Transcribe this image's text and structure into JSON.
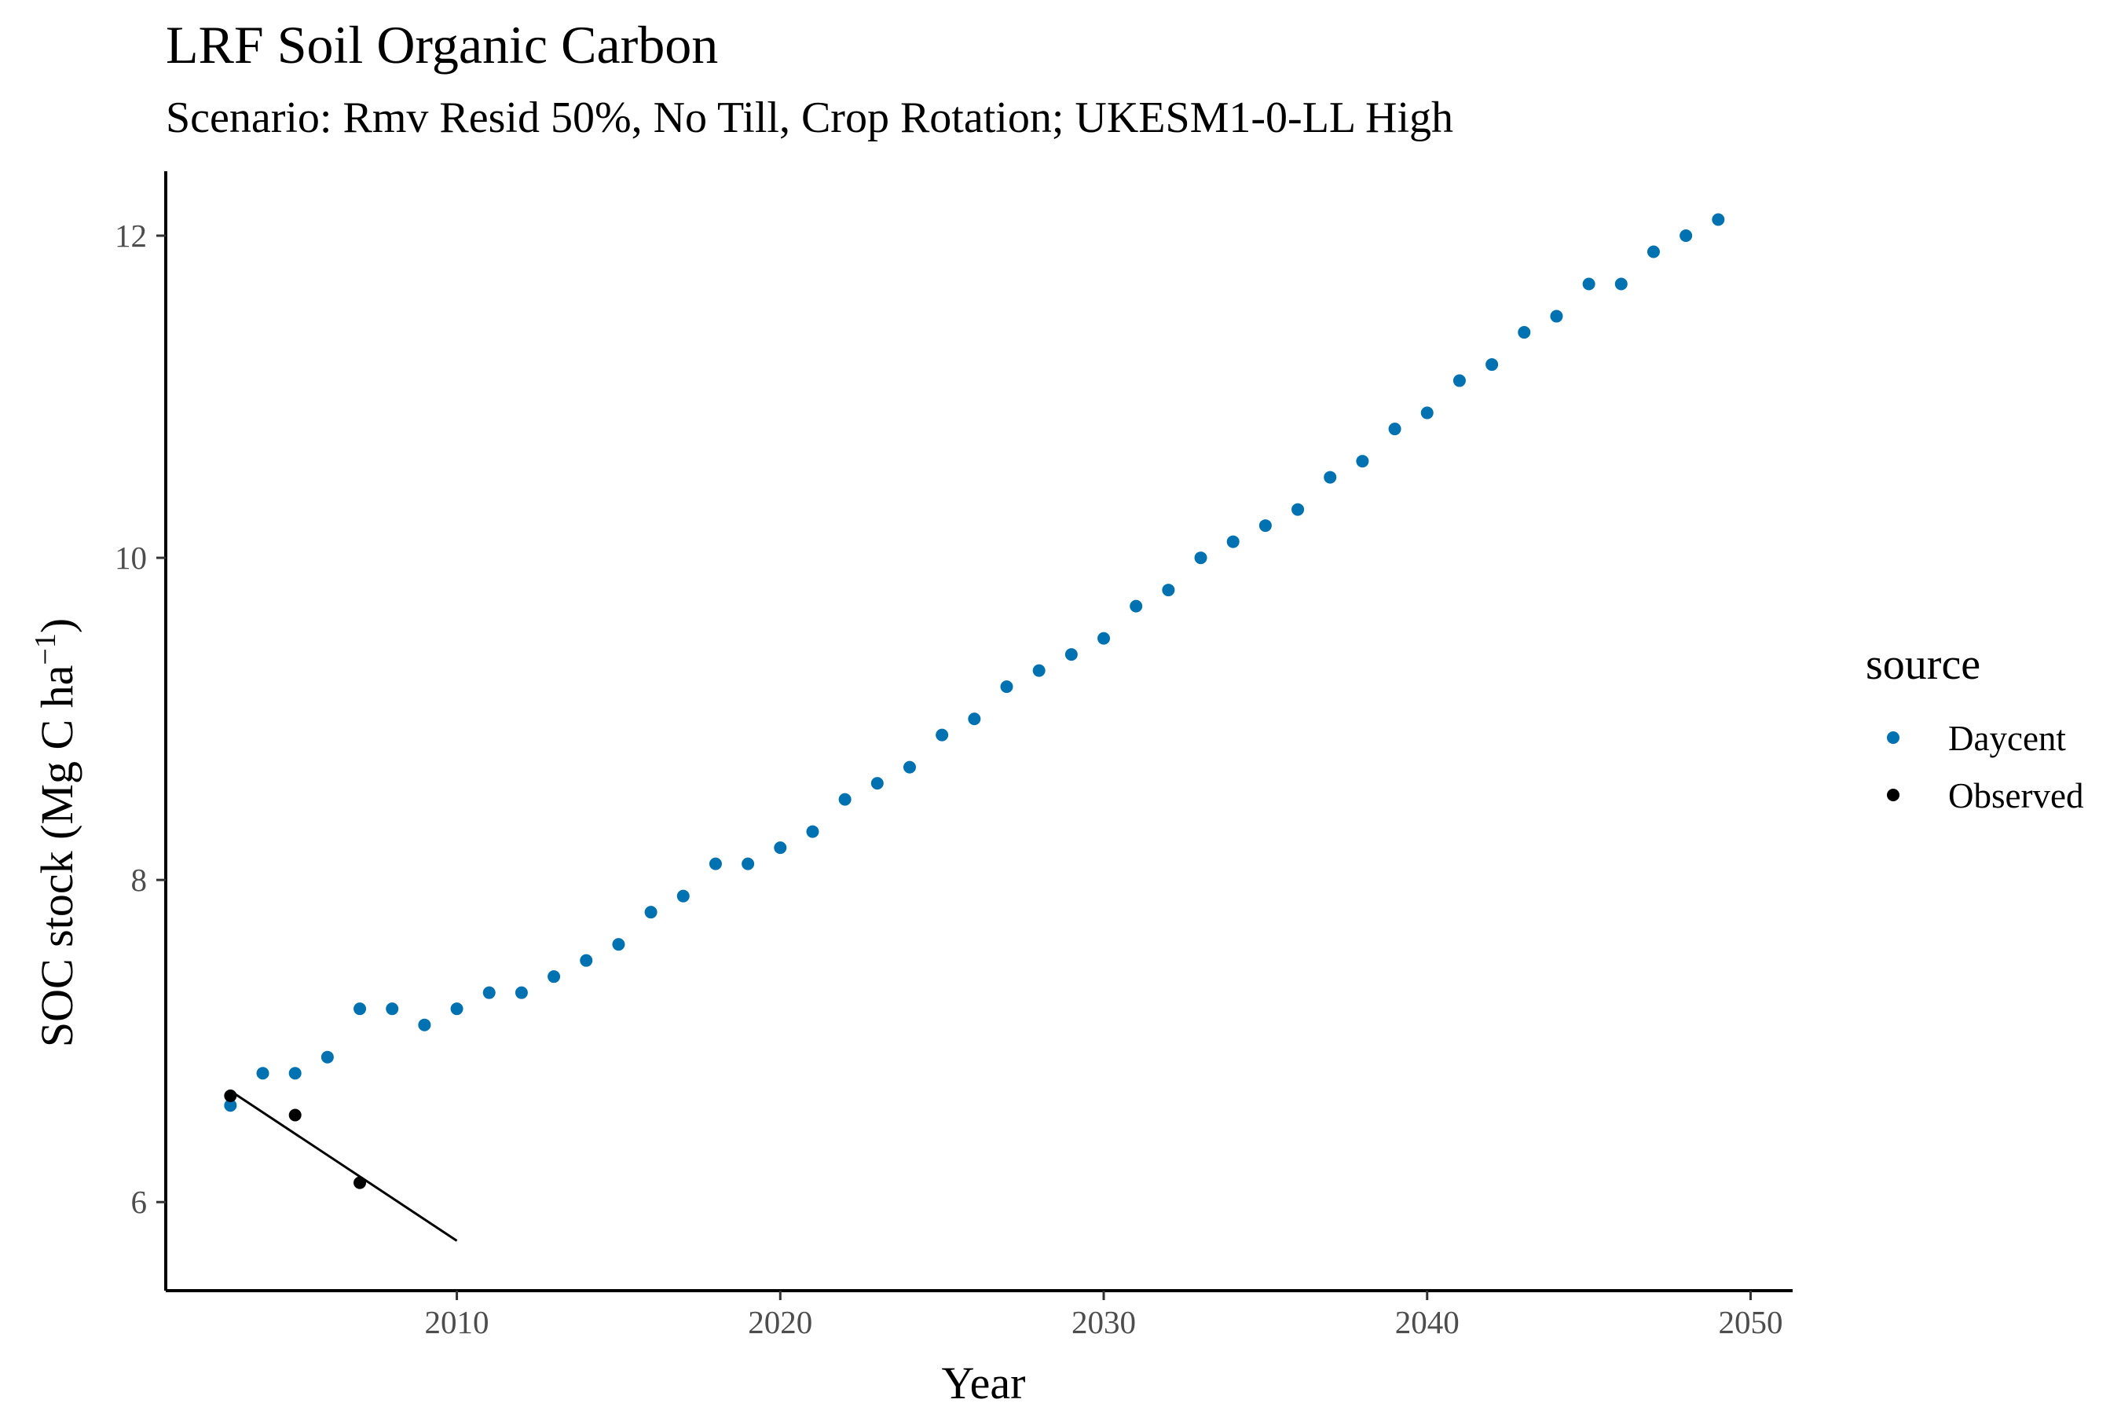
{
  "chart_data": {
    "type": "scatter",
    "title": "LRF Soil Organic Carbon",
    "subtitle": "Scenario: Rmv Resid 50%, No Till, Crop Rotation; UKESM1-0-LL High",
    "xlabel": "Year",
    "ylabel_prefix": "SOC stock (Mg C ha",
    "ylabel_superscript": "−1",
    "ylabel_suffix": ")",
    "xlim": [
      2001,
      2051.3
    ],
    "ylim": [
      5.45,
      12.4
    ],
    "x_ticks": [
      2010,
      2020,
      2030,
      2040,
      2050
    ],
    "y_ticks": [
      6,
      8,
      10,
      12
    ],
    "grid": false,
    "legend": {
      "title": "source",
      "position": "right"
    },
    "series": [
      {
        "name": "Daycent",
        "color": "#0072B2",
        "x": [
          2003,
          2004,
          2005,
          2006,
          2007,
          2008,
          2009,
          2010,
          2011,
          2012,
          2013,
          2014,
          2015,
          2016,
          2017,
          2018,
          2019,
          2020,
          2021,
          2022,
          2023,
          2024,
          2025,
          2026,
          2027,
          2028,
          2029,
          2030,
          2031,
          2032,
          2033,
          2034,
          2035,
          2036,
          2037,
          2038,
          2039,
          2040,
          2041,
          2042,
          2043,
          2044,
          2045,
          2046,
          2047,
          2048,
          2049
        ],
        "y": [
          6.6,
          6.8,
          6.8,
          6.9,
          7.2,
          7.2,
          7.1,
          7.2,
          7.3,
          7.3,
          7.4,
          7.5,
          7.6,
          7.8,
          7.9,
          8.1,
          8.1,
          8.2,
          8.3,
          8.5,
          8.6,
          8.7,
          8.9,
          9.0,
          9.2,
          9.3,
          9.4,
          9.5,
          9.7,
          9.8,
          10.0,
          10.1,
          10.2,
          10.3,
          10.5,
          10.6,
          10.8,
          10.9,
          11.1,
          11.2,
          11.4,
          11.5,
          11.7,
          11.7,
          11.9,
          12.0,
          12.1
        ]
      },
      {
        "name": "Observed",
        "color": "#000000",
        "x": [
          2003,
          2005,
          2007
        ],
        "y": [
          6.66,
          6.54,
          6.12
        ]
      }
    ],
    "trend_line": {
      "x": [
        2003,
        2010
      ],
      "y": [
        6.69,
        5.76
      ],
      "color": "#000000"
    }
  }
}
